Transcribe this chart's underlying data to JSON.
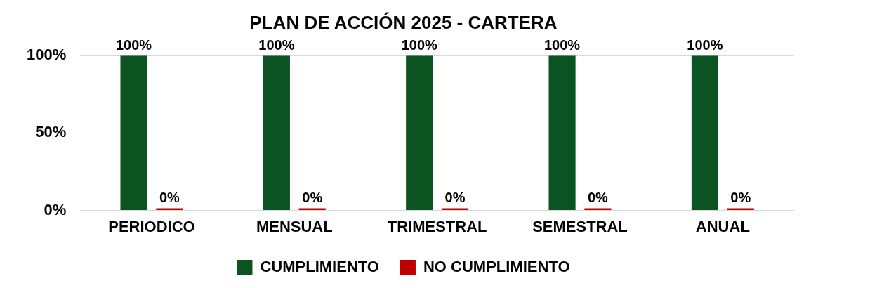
{
  "chart_data": {
    "type": "bar",
    "title": "PLAN DE ACCIÓN 2025 - CARTERA",
    "categories": [
      "PERIODICO",
      "MENSUAL",
      "TRIMESTRAL",
      "SEMESTRAL",
      "ANUAL"
    ],
    "series": [
      {
        "name": "CUMPLIMIENTO",
        "color": "#0b5320",
        "values": [
          100,
          100,
          100,
          100,
          100
        ],
        "value_labels": [
          "100%",
          "100%",
          "100%",
          "100%",
          "100%"
        ]
      },
      {
        "name": "NO CUMPLIMIENTO",
        "color": "#c00000",
        "values": [
          0,
          0,
          0,
          0,
          0
        ],
        "value_labels": [
          "0%",
          "0%",
          "0%",
          "0%",
          "0%"
        ]
      }
    ],
    "ylim": [
      0,
      100
    ],
    "yticks": [
      {
        "value": 0,
        "label": "0%"
      },
      {
        "value": 50,
        "label": "50%"
      },
      {
        "value": 100,
        "label": "100%"
      }
    ],
    "grid": "y",
    "legend": "bottom"
  }
}
